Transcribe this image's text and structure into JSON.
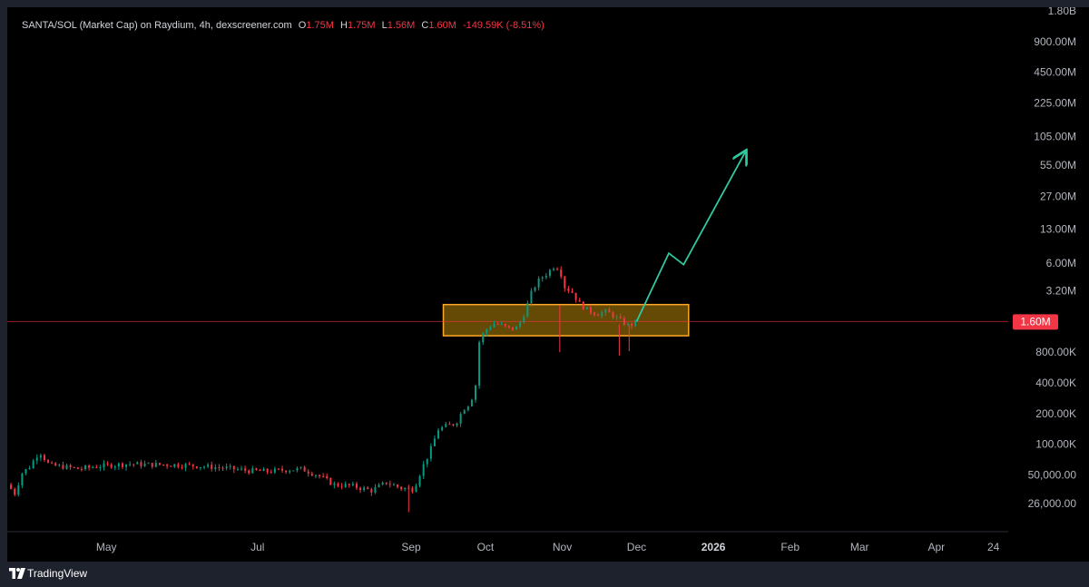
{
  "legend": {
    "symbol": "SANTA/SOL (Market Cap) on Raydium, 4h, dexscreener.com",
    "open_label": "O",
    "open": "1.75M",
    "high_label": "H",
    "high": "1.75M",
    "low_label": "L",
    "low": "1.56M",
    "close_label": "C",
    "close": "1.60M",
    "change": "-149.59K (-8.51%)"
  },
  "footer": {
    "brand": "TradingView",
    "logo_icon": "tradingview-logo-icon"
  },
  "colors": {
    "background": "#000000",
    "frame": "#1e222d",
    "up": "#089981",
    "down": "#f23645",
    "zone_fill": "#b8860b",
    "zone_border": "#ffa726",
    "arrow": "#2fc9a0",
    "price_line": "#f23645"
  },
  "chart_data": {
    "type": "candlestick",
    "y_scale": "log",
    "ylim": [
      20000,
      1800000000
    ],
    "xlim": [
      "2025-03-22",
      "2026-04-30"
    ],
    "y_ticks": [
      {
        "value": 1800000000,
        "label": "1.80B"
      },
      {
        "value": 900000000,
        "label": "900.00M"
      },
      {
        "value": 450000000,
        "label": "450.00M"
      },
      {
        "value": 225000000,
        "label": "225.00M"
      },
      {
        "value": 105000000,
        "label": "105.00M"
      },
      {
        "value": 55000000,
        "label": "55.00M"
      },
      {
        "value": 27000000,
        "label": "27.00M"
      },
      {
        "value": 13000000,
        "label": "13.00M"
      },
      {
        "value": 6000000,
        "label": "6.00M"
      },
      {
        "value": 3200000,
        "label": "3.20M"
      },
      {
        "value": 800000,
        "label": "800.00K"
      },
      {
        "value": 400000,
        "label": "400.00K"
      },
      {
        "value": 200000,
        "label": "200.00K"
      },
      {
        "value": 100000,
        "label": "100.00K"
      },
      {
        "value": 50000,
        "label": "50,000.00"
      },
      {
        "value": 26000,
        "label": "26,000.00"
      }
    ],
    "x_ticks": [
      {
        "date": "2025-05-01",
        "label": "May",
        "bold": false
      },
      {
        "date": "2025-07-01",
        "label": "Jul",
        "bold": false
      },
      {
        "date": "2025-09-01",
        "label": "Sep",
        "bold": false
      },
      {
        "date": "2025-10-01",
        "label": "Oct",
        "bold": false
      },
      {
        "date": "2025-11-01",
        "label": "Nov",
        "bold": false
      },
      {
        "date": "2025-12-01",
        "label": "Dec",
        "bold": false
      },
      {
        "date": "2026-01-01",
        "label": "2026",
        "bold": true
      },
      {
        "date": "2026-02-01",
        "label": "Feb",
        "bold": false
      },
      {
        "date": "2026-03-01",
        "label": "Mar",
        "bold": false
      },
      {
        "date": "2026-04-01",
        "label": "Apr",
        "bold": false
      },
      {
        "date": "2026-04-24",
        "label": "24",
        "bold": false
      }
    ],
    "current_price": {
      "value": 1600000,
      "label": "1.60M"
    },
    "price_path": [
      [
        "2025-03-22",
        40000
      ],
      [
        "2025-03-25",
        33000
      ],
      [
        "2025-03-28",
        52000
      ],
      [
        "2025-03-31",
        60000
      ],
      [
        "2025-04-04",
        85000
      ],
      [
        "2025-04-08",
        62000
      ],
      [
        "2025-04-14",
        60000
      ],
      [
        "2025-04-20",
        57000
      ],
      [
        "2025-04-26",
        60000
      ],
      [
        "2025-05-02",
        62000
      ],
      [
        "2025-05-10",
        64000
      ],
      [
        "2025-05-18",
        63000
      ],
      [
        "2025-05-26",
        63000
      ],
      [
        "2025-06-03",
        62000
      ],
      [
        "2025-06-11",
        60000
      ],
      [
        "2025-06-19",
        58000
      ],
      [
        "2025-06-27",
        55000
      ],
      [
        "2025-07-05",
        54000
      ],
      [
        "2025-07-13",
        56000
      ],
      [
        "2025-07-19",
        57000
      ],
      [
        "2025-07-25",
        50000
      ],
      [
        "2025-08-01",
        40000
      ],
      [
        "2025-08-08",
        39000
      ],
      [
        "2025-08-16",
        35000
      ],
      [
        "2025-08-22",
        42000
      ],
      [
        "2025-08-28",
        37000
      ],
      [
        "2025-09-02",
        36000
      ],
      [
        "2025-09-05",
        55000
      ],
      [
        "2025-09-09",
        90000
      ],
      [
        "2025-09-12",
        140000
      ],
      [
        "2025-09-15",
        150000
      ],
      [
        "2025-09-19",
        160000
      ],
      [
        "2025-09-22",
        220000
      ],
      [
        "2025-09-25",
        260000
      ],
      [
        "2025-09-27",
        380000
      ],
      [
        "2025-09-28",
        950000
      ],
      [
        "2025-09-30",
        1200000
      ],
      [
        "2025-10-02",
        1400000
      ],
      [
        "2025-10-05",
        1550000
      ],
      [
        "2025-10-08",
        1450000
      ],
      [
        "2025-10-11",
        1350000
      ],
      [
        "2025-10-14",
        1400000
      ],
      [
        "2025-10-17",
        2000000
      ],
      [
        "2025-10-20",
        3300000
      ],
      [
        "2025-10-23",
        4200000
      ],
      [
        "2025-10-26",
        4800000
      ],
      [
        "2025-10-29",
        5700000
      ],
      [
        "2025-10-31",
        5200000
      ],
      [
        "2025-11-02",
        3500000
      ],
      [
        "2025-11-05",
        3100000
      ],
      [
        "2025-11-08",
        2400000
      ],
      [
        "2025-11-11",
        2100000
      ],
      [
        "2025-11-15",
        1900000
      ],
      [
        "2025-11-19",
        2000000
      ],
      [
        "2025-11-22",
        1800000
      ],
      [
        "2025-11-25",
        1600000
      ],
      [
        "2025-11-28",
        1450000
      ],
      [
        "2025-12-01",
        1600000
      ]
    ],
    "zone": {
      "start": "2025-09-14",
      "end": "2025-12-22",
      "low": 1160000,
      "high": 2350000
    },
    "projection": [
      [
        "2025-12-01",
        1600000
      ],
      [
        "2025-12-14",
        7500000
      ],
      [
        "2025-12-20",
        5800000
      ],
      [
        "2026-01-14",
        75000000
      ]
    ]
  }
}
